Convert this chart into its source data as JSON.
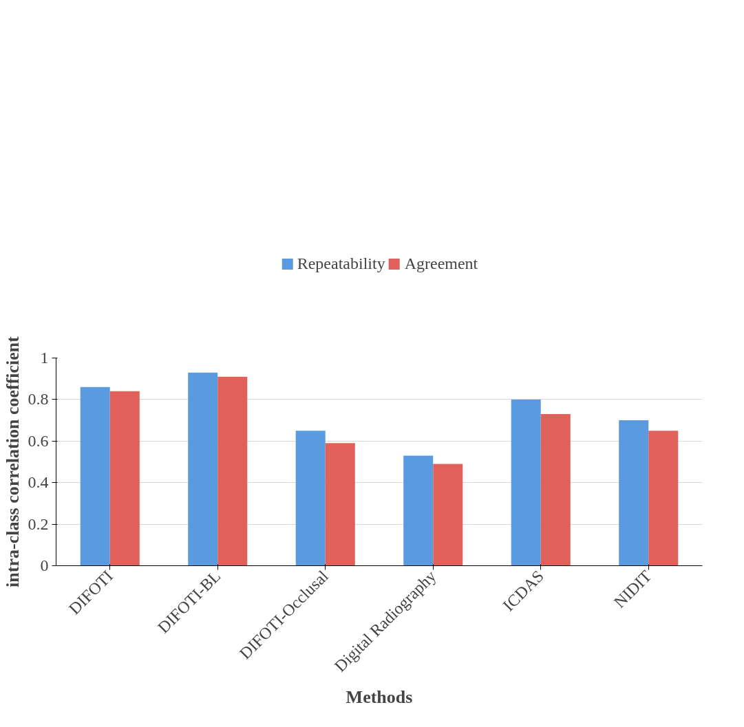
{
  "chart_data": {
    "type": "bar",
    "xlabel": "Methods",
    "ylabel": "intra-class correlation coefficient",
    "categories": [
      "DIFOTI",
      "DIFOTI-BL",
      "DIFOTI-Occlusal",
      "Digital Radiography",
      "ICDAS",
      "NIDIT"
    ],
    "series": [
      {
        "name": "Repeatability",
        "color": "#5a9be0",
        "values": [
          0.86,
          0.93,
          0.65,
          0.53,
          0.8,
          0.7
        ]
      },
      {
        "name": "Agreement",
        "color": "#e0605a",
        "values": [
          0.84,
          0.91,
          0.59,
          0.49,
          0.73,
          0.65
        ]
      }
    ],
    "ylim": [
      0,
      1
    ],
    "yticks": [
      0,
      0.2,
      0.4,
      0.6,
      0.8,
      1
    ],
    "grid": "y",
    "legend": "top"
  }
}
